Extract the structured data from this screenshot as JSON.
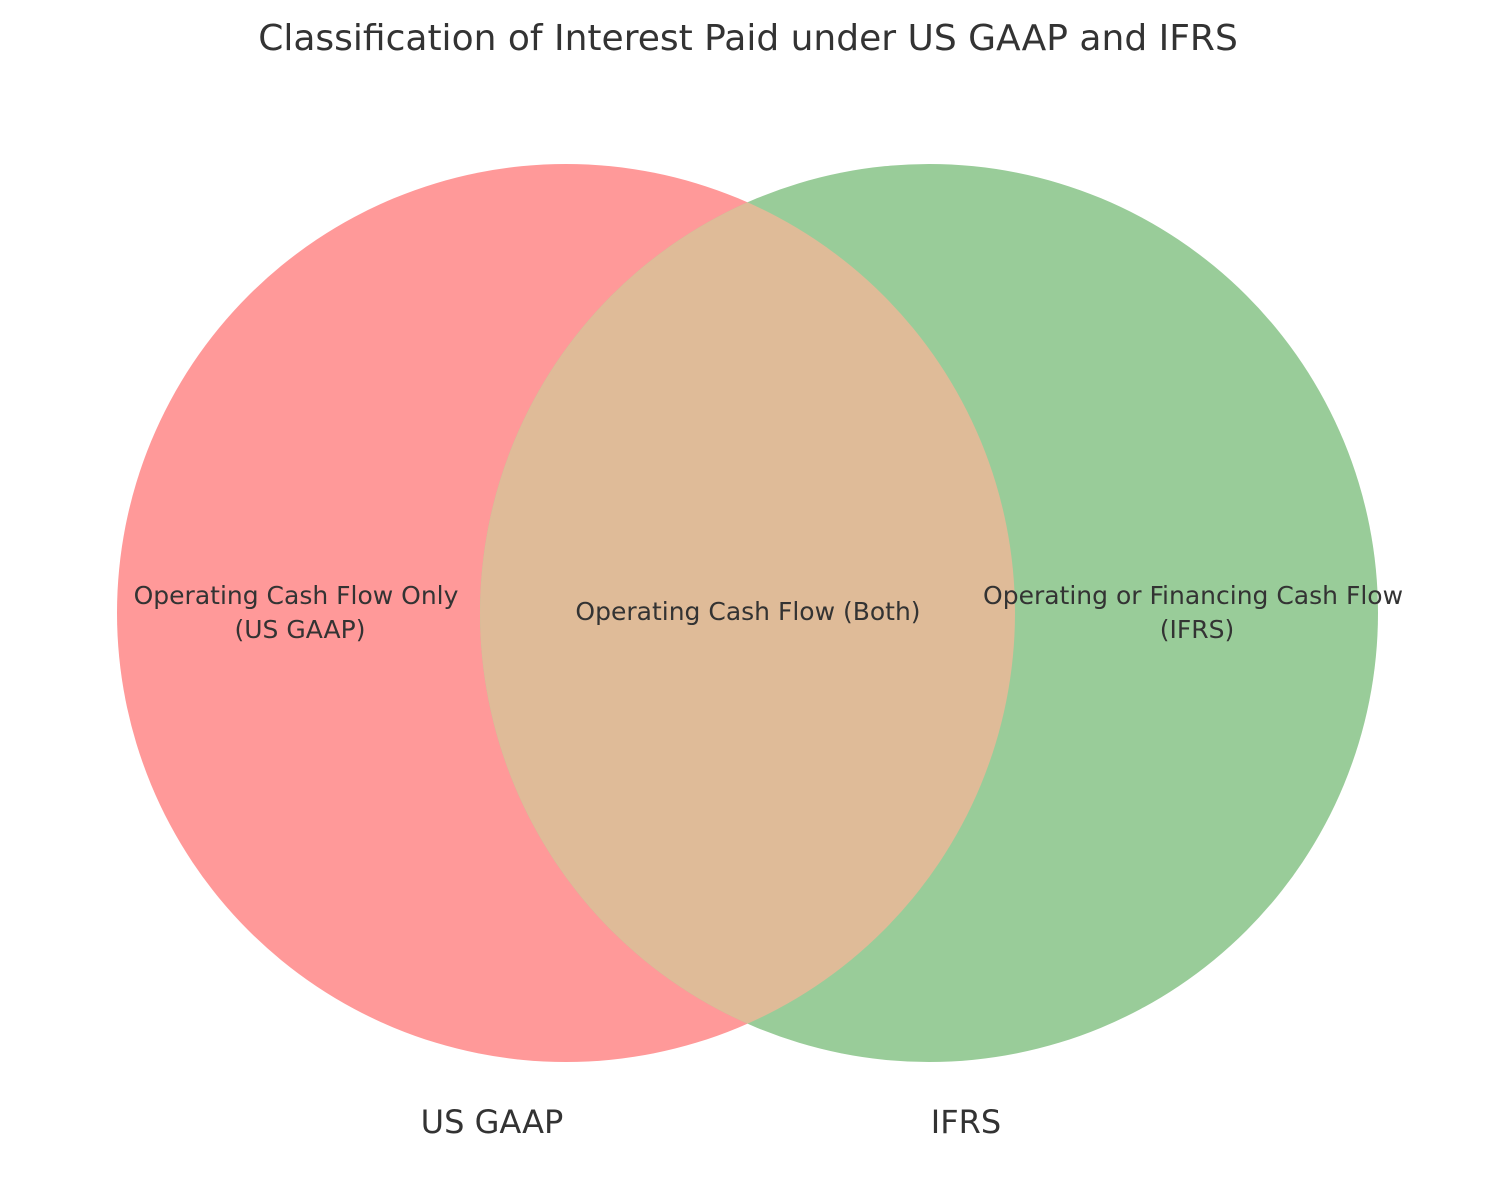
{
  "title": "Classification of Interest Paid under US GAAP and IFRS",
  "sets": [
    {
      "name": "US GAAP",
      "color": "#ff9999"
    },
    {
      "name": "IFRS",
      "color": "#99cc99"
    }
  ],
  "regions": {
    "left_only": {
      "line1": "Operating Cash Flow Only",
      "line2": "(US GAAP)"
    },
    "overlap": {
      "line1": "Operating Cash Flow (Both)"
    },
    "right_only": {
      "line1": "Operating or Financing Cash Flow",
      "line2": "(IFRS)"
    }
  },
  "overlap_color": "#dfbb98",
  "text_color": "#333333"
}
